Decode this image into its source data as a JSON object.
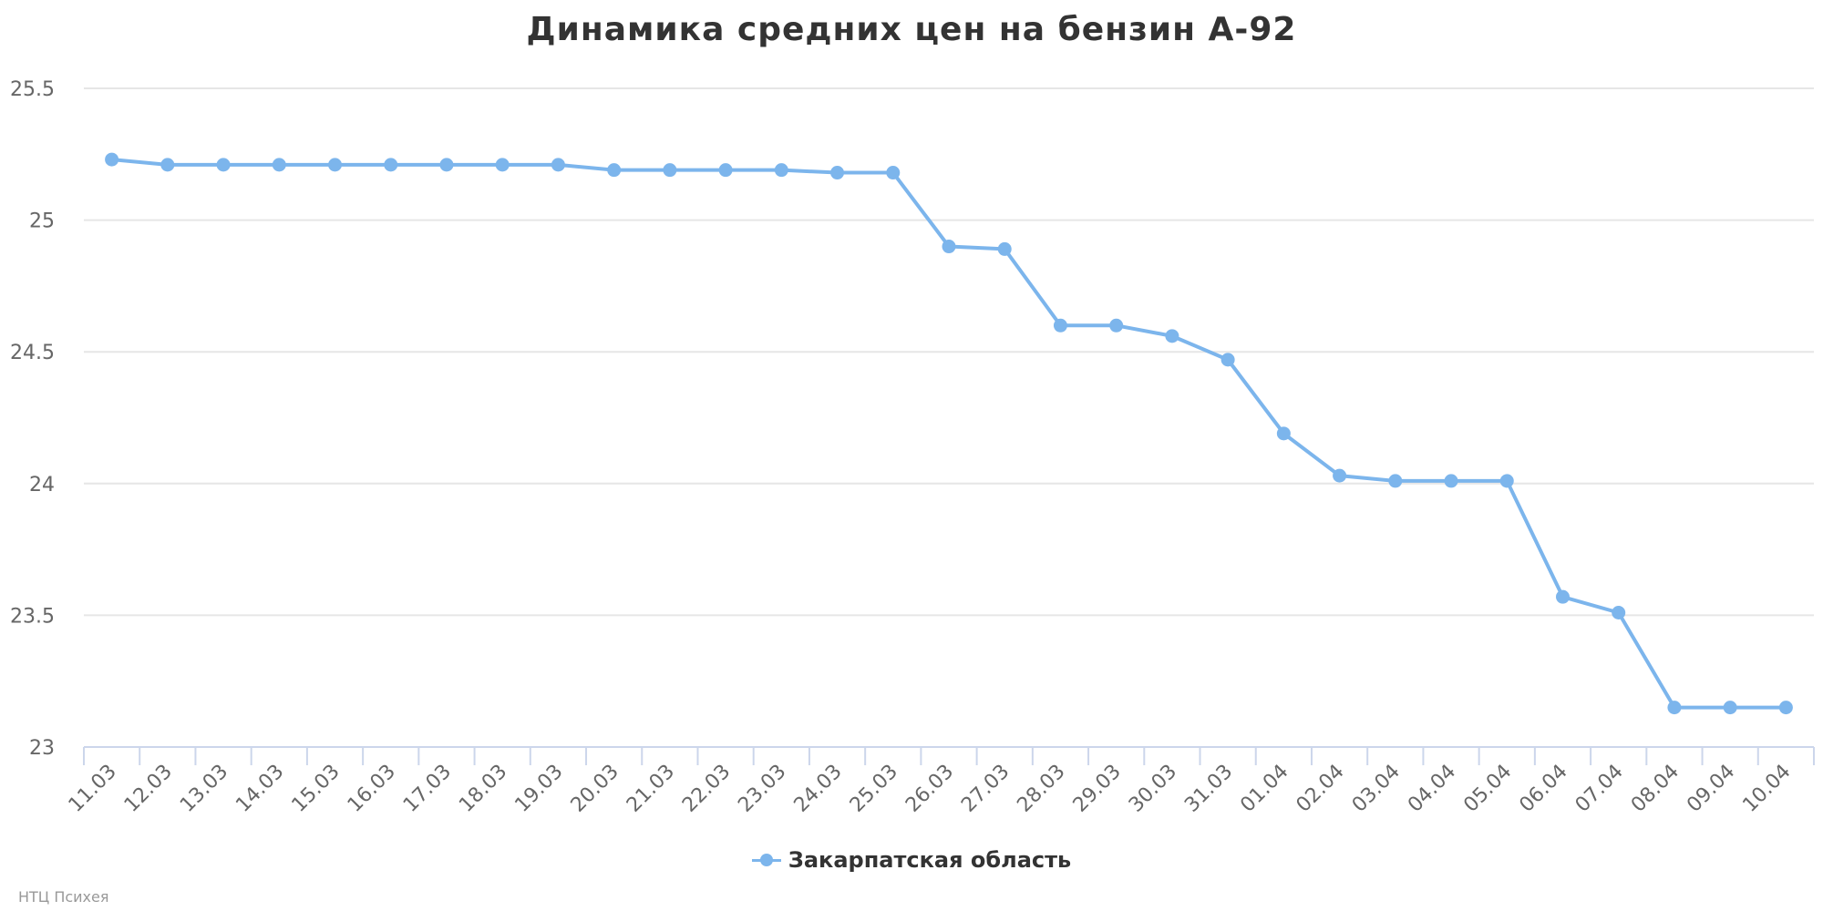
{
  "chart_data": {
    "type": "line",
    "title": "Динамика средних цен на бензин А-92",
    "xlabel": "",
    "ylabel": "",
    "ylim": [
      23,
      25.5
    ],
    "yticks": [
      "25.5",
      "25",
      "24.5",
      "24",
      "23.5",
      "23"
    ],
    "categories": [
      "11.03",
      "12.03",
      "13.03",
      "14.03",
      "15.03",
      "16.03",
      "17.03",
      "18.03",
      "19.03",
      "20.03",
      "21.03",
      "22.03",
      "23.03",
      "24.03",
      "25.03",
      "26.03",
      "27.03",
      "28.03",
      "29.03",
      "30.03",
      "31.03",
      "01.04",
      "02.04",
      "03.04",
      "04.04",
      "05.04",
      "06.04",
      "07.04",
      "08.04",
      "09.04",
      "10.04"
    ],
    "series": [
      {
        "name": "Закарпатская область",
        "color": "#7cb5ec",
        "values": [
          25.23,
          25.21,
          25.21,
          25.21,
          25.21,
          25.21,
          25.21,
          25.21,
          25.21,
          25.19,
          25.19,
          25.19,
          25.19,
          25.18,
          25.18,
          24.9,
          24.89,
          24.6,
          24.6,
          24.56,
          24.47,
          24.19,
          24.03,
          24.01,
          24.01,
          24.01,
          23.57,
          23.51,
          23.15,
          23.15,
          23.15
        ]
      }
    ],
    "grid": true,
    "legend_position": "bottom-center"
  },
  "credits": "НТЦ Психея"
}
